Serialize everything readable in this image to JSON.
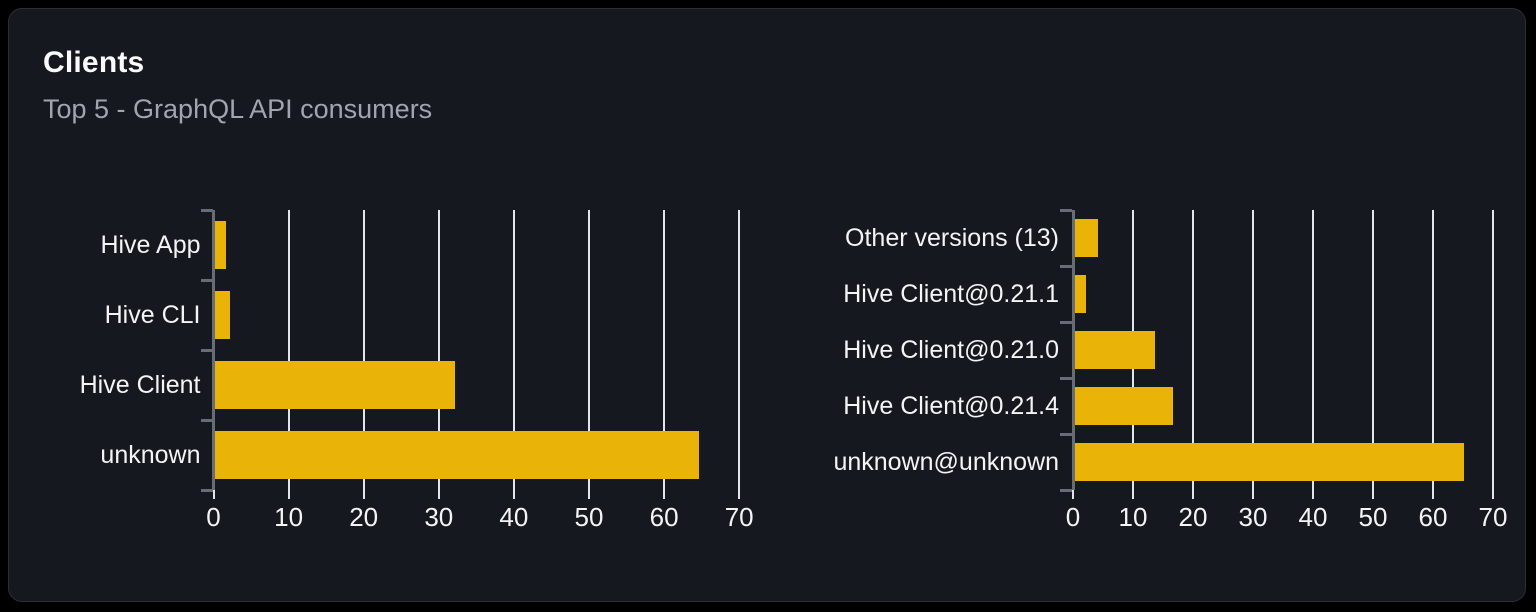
{
  "card": {
    "title": "Clients",
    "subtitle": "Top 5 - GraphQL API consumers"
  },
  "colors": {
    "page_background": "#000000",
    "card_background": "#15181e",
    "card_border": "#2b2e35",
    "title_text": "#fafafa",
    "subtitle_text": "#a1a5ad",
    "label_text": "#f4f4f5",
    "bar_fill": "#eab308",
    "gridline": "#e2e5ea",
    "axis": "#686d75"
  },
  "chart_data": [
    {
      "type": "bar",
      "orientation": "horizontal",
      "categories": [
        "Hive App",
        "Hive CLI",
        "Hive Client",
        "unknown"
      ],
      "values": [
        1.5,
        2,
        32,
        64.5
      ],
      "xticks": [
        0,
        10,
        20,
        30,
        40,
        50,
        60,
        70
      ],
      "xlim": [
        0,
        72
      ],
      "grid": true,
      "bar_color": "#eab308"
    },
    {
      "type": "bar",
      "orientation": "horizontal",
      "categories": [
        "Other versions (13)",
        "Hive Client@0.21.1",
        "Hive Client@0.21.0",
        "Hive Client@0.21.4",
        "unknown@unknown"
      ],
      "values": [
        4,
        2,
        13.5,
        16.5,
        65
      ],
      "xticks": [
        0,
        10,
        20,
        30,
        40,
        50,
        60,
        70
      ],
      "xlim": [
        0,
        72
      ],
      "grid": true,
      "bar_color": "#eab308"
    }
  ]
}
